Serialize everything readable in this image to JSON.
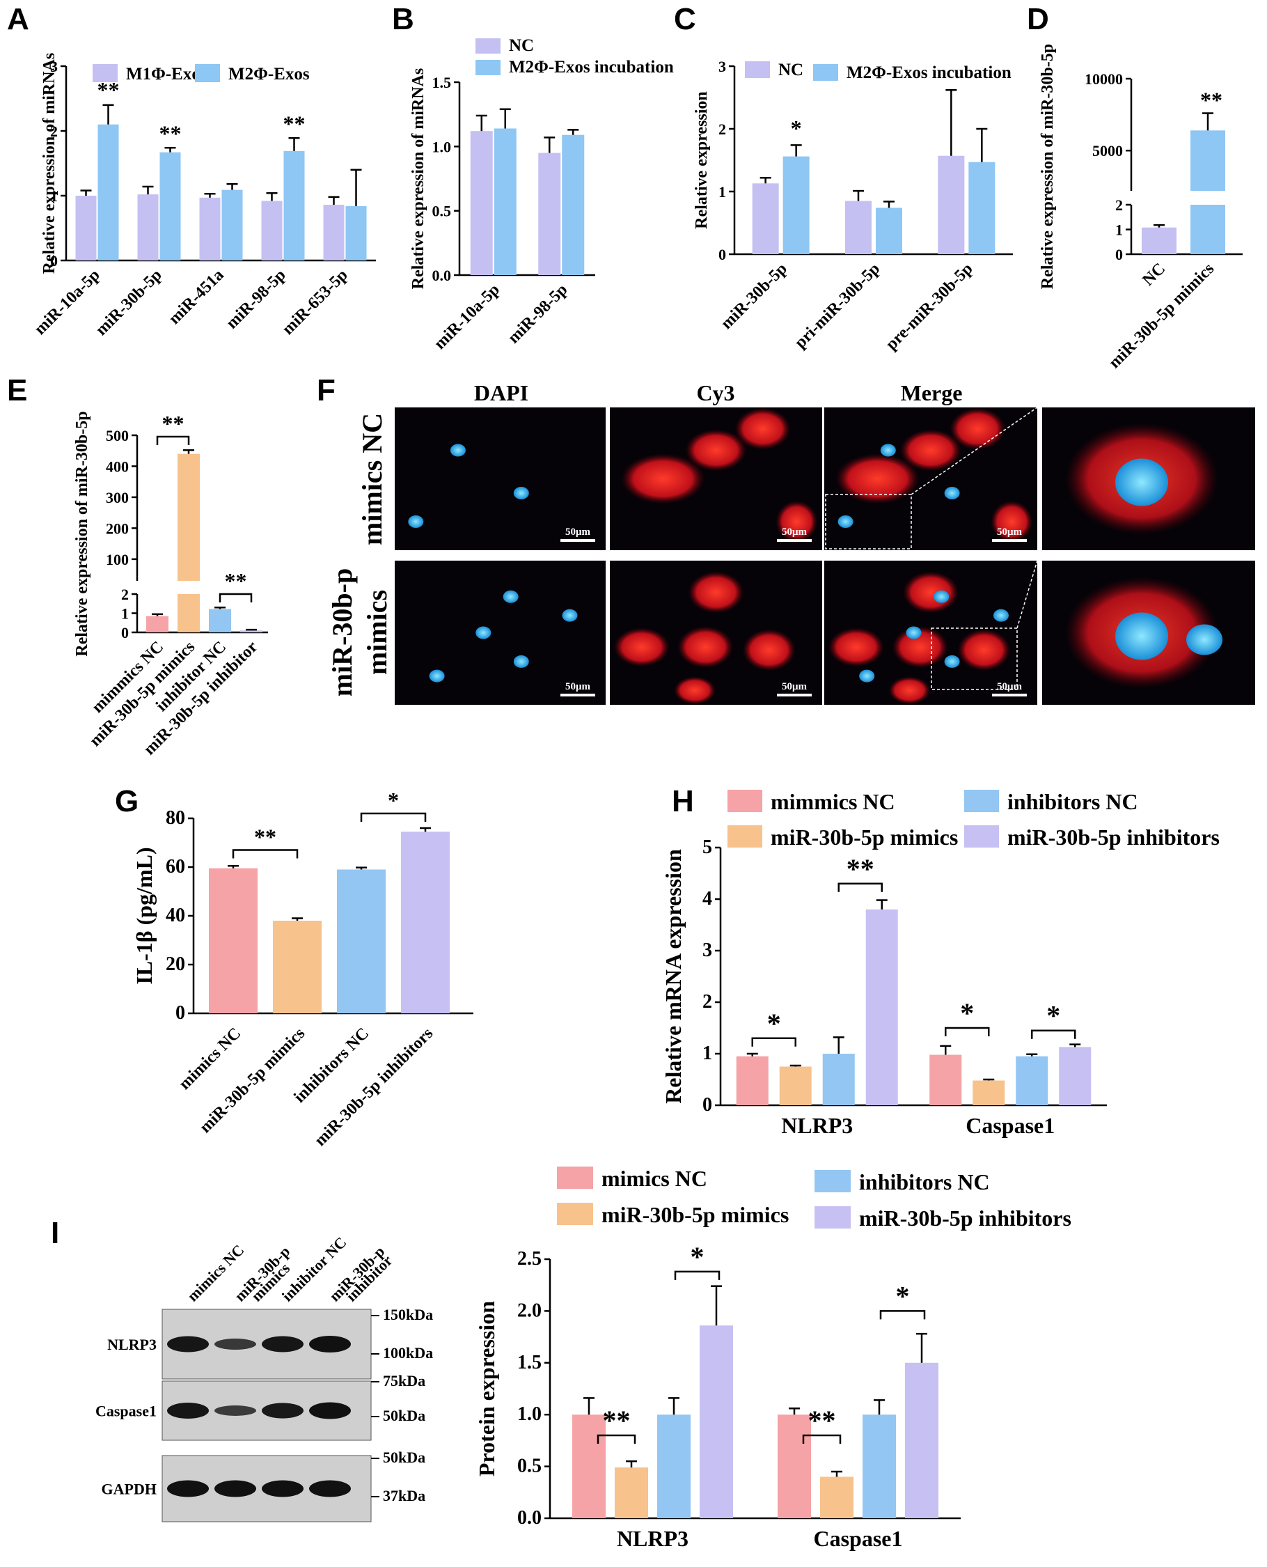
{
  "panel_letters": [
    "A",
    "B",
    "C",
    "D",
    "E",
    "F",
    "G",
    "H",
    "I"
  ],
  "colors": {
    "M1": "#c5c0f2",
    "M2": "#8ec6f4",
    "NC": "#f5a3a6",
    "mimic": "#f8c28c",
    "inhNC": "#93c6f3",
    "inh": "#c6c0f3"
  },
  "panelF": {
    "col_titles": [
      "DAPI",
      "Cy3",
      "Merge"
    ],
    "row_titles": [
      "mimics NC",
      "miR-30b-p",
      "mimics"
    ],
    "scale_label": "50μm"
  },
  "panelI_blot": {
    "lane_labels": [
      [
        "mimics NC"
      ],
      [
        "miR-30b-p",
        "mimics"
      ],
      [
        "inhibitor NC"
      ],
      [
        "miR-30b-p",
        "inhibitor"
      ]
    ],
    "row_labels": [
      "NLRP3",
      "Caspase1",
      "GAPDH"
    ],
    "markers": [
      "150kDa",
      "100kDa",
      "75kDa",
      "50kDa",
      "50kDa",
      "37kDa"
    ]
  },
  "chart_data": [
    {
      "id": "A",
      "type": "bar",
      "categories": [
        "miR-10a-5p",
        "miR-30b-5p",
        "miR-451a",
        "miR-98-5p",
        "miR-653-5p"
      ],
      "series": [
        {
          "name": "M1Φ-Exos",
          "color": "#c5c0f2",
          "values": [
            1.0,
            1.02,
            0.97,
            0.92,
            0.86
          ],
          "errors": [
            0.08,
            0.12,
            0.06,
            0.12,
            0.12
          ]
        },
        {
          "name": "M2Φ-Exos",
          "color": "#8ec6f4",
          "values": [
            2.1,
            1.67,
            1.09,
            1.69,
            0.84
          ],
          "errors": [
            0.3,
            0.07,
            0.09,
            0.2,
            0.56
          ]
        }
      ],
      "ylabel": "Relative expression of miRNAs",
      "ylim": [
        0,
        3
      ],
      "yticks": [
        "0",
        "1",
        "2",
        "3"
      ],
      "annotations": [
        "**",
        "**",
        "**"
      ]
    },
    {
      "id": "B",
      "type": "bar",
      "categories": [
        "miR-10a-5p",
        "miR-98-5p"
      ],
      "series": [
        {
          "name": "NC",
          "color": "#c5c0f2",
          "values": [
            1.12,
            0.95
          ],
          "errors": [
            0.12,
            0.12
          ]
        },
        {
          "name": "M2Φ-Exos incubation",
          "color": "#8ec6f4",
          "values": [
            1.14,
            1.09
          ],
          "errors": [
            0.15,
            0.04
          ]
        }
      ],
      "ylabel": "Relative expression of miRNAs",
      "ylim": [
        0,
        1.5
      ],
      "yticks": [
        "0.0",
        "0.5",
        "1.0",
        "1.5"
      ]
    },
    {
      "id": "C",
      "type": "bar",
      "categories": [
        "miR-30b-5p",
        "pri-miR-30b-5p",
        "pre-miR-30b-5p"
      ],
      "series": [
        {
          "name": "NC",
          "color": "#c5c0f2",
          "values": [
            1.13,
            0.85,
            1.57
          ],
          "errors": [
            0.09,
            0.16,
            1.05
          ]
        },
        {
          "name": "M2Φ-Exos incubation",
          "color": "#8ec6f4",
          "values": [
            1.56,
            0.74,
            1.47
          ],
          "errors": [
            0.18,
            0.1,
            0.53
          ]
        }
      ],
      "ylabel": "Relative expression",
      "ylim": [
        0,
        3
      ],
      "yticks": [
        "0",
        "1",
        "2",
        "3"
      ],
      "annotations": [
        "*"
      ]
    },
    {
      "id": "D",
      "type": "bar",
      "categories": [
        "NC",
        "miR-30b-5p mimics"
      ],
      "values": [
        1.08,
        6400
      ],
      "errors": [
        0.1,
        1200
      ],
      "colors": [
        "#c5c0f2",
        "#8ec6f4"
      ],
      "ylabel": "Relative expression of miR-30b-5p",
      "yticks_low": [
        "0",
        "1",
        "2"
      ],
      "yticks_high": [
        "5000",
        "10000"
      ],
      "annotations": [
        "**"
      ]
    },
    {
      "id": "E",
      "type": "bar",
      "categories": [
        "mimmics NC",
        "miR-30b-5p mimics",
        "inhibitor NC",
        "miR-30b-5p inhibitor"
      ],
      "values": [
        0.85,
        440,
        1.22,
        0.1
      ],
      "errors": [
        0.1,
        12,
        0.08,
        0.04
      ],
      "colors": [
        "#f5a3a6",
        "#f8c28c",
        "#93c6f3",
        "#c6c0f3"
      ],
      "ylabel": "Relative expression of miR-30b-5p",
      "yticks_low": [
        "0",
        "1",
        "2"
      ],
      "yticks_high": [
        "100",
        "200",
        "300",
        "400",
        "500"
      ],
      "annotations": [
        "**",
        "**"
      ]
    },
    {
      "id": "G",
      "type": "bar",
      "categories": [
        "mimics NC",
        "miR-30b-5p mimics",
        "inhibitors NC",
        "miR-30b-5p inhibitors"
      ],
      "values": [
        59.5,
        38,
        59,
        74.5
      ],
      "errors": [
        1.0,
        1.0,
        0.8,
        1.5
      ],
      "colors": [
        "#f5a3a6",
        "#f8c28c",
        "#93c6f3",
        "#c6c0f3"
      ],
      "ylabel": "IL-1β (pg/mL)",
      "ylim": [
        0,
        80
      ],
      "yticks": [
        "0",
        "20",
        "40",
        "60",
        "80"
      ],
      "annotations": [
        "**",
        "*"
      ]
    },
    {
      "id": "H",
      "type": "bar",
      "categories": [
        "NLRP3",
        "Caspase1"
      ],
      "series": [
        {
          "name": "mimmics NC",
          "color": "#f5a3a6",
          "values": [
            0.95,
            0.98
          ],
          "errors": [
            0.05,
            0.17
          ]
        },
        {
          "name": "miR-30b-5p mimics",
          "color": "#f8c28c",
          "values": [
            0.75,
            0.48
          ],
          "errors": [
            0.02,
            0.02
          ]
        },
        {
          "name": "inhibitors NC",
          "color": "#93c6f3",
          "values": [
            1.0,
            0.95
          ],
          "errors": [
            0.32,
            0.04
          ]
        },
        {
          "name": "miR-30b-5p inhibitors",
          "color": "#c6c0f3",
          "values": [
            3.8,
            1.13
          ],
          "errors": [
            0.18,
            0.05
          ]
        }
      ],
      "ylabel": "Relative mRNA expression",
      "ylim": [
        0,
        5
      ],
      "yticks": [
        "0",
        "1",
        "2",
        "3",
        "4",
        "5"
      ],
      "annotations": [
        "*",
        "**",
        "*",
        "*"
      ]
    },
    {
      "id": "I",
      "type": "bar",
      "categories": [
        "NLRP3",
        "Caspase1"
      ],
      "series": [
        {
          "name": "mimics NC",
          "color": "#f5a3a6",
          "values": [
            1.0,
            1.0
          ],
          "errors": [
            0.16,
            0.06
          ]
        },
        {
          "name": "miR-30b-5p mimics",
          "color": "#f8c28c",
          "values": [
            0.49,
            0.4
          ],
          "errors": [
            0.06,
            0.05
          ]
        },
        {
          "name": "inhibitors NC",
          "color": "#93c6f3",
          "values": [
            1.0,
            1.0
          ],
          "errors": [
            0.16,
            0.14
          ]
        },
        {
          "name": "miR-30b-5p inhibitors",
          "color": "#c6c0f3",
          "values": [
            1.86,
            1.5
          ],
          "errors": [
            0.38,
            0.28
          ]
        }
      ],
      "ylabel": "Protein expression",
      "ylim": [
        0,
        2.5
      ],
      "yticks": [
        "0.0",
        "0.5",
        "1.0",
        "1.5",
        "2.0",
        "2.5"
      ],
      "annotations": [
        "**",
        "*",
        "**",
        "*"
      ]
    }
  ]
}
